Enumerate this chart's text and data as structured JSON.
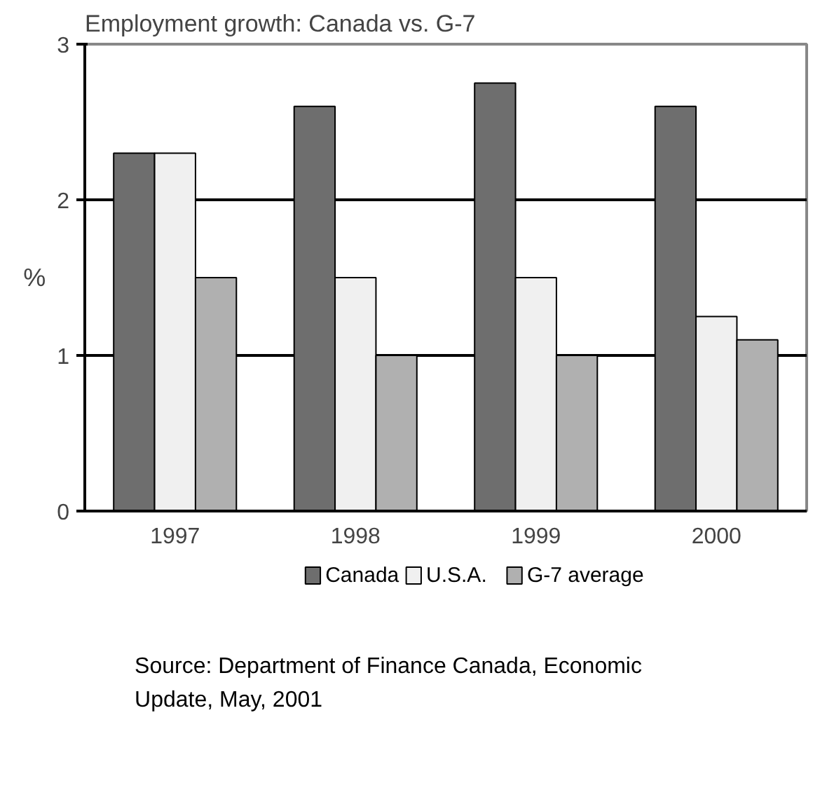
{
  "chart_data": {
    "type": "bar",
    "title": "Employment growth: Canada vs. G-7",
    "ylabel": "%",
    "categories": [
      "1997",
      "1998",
      "1999",
      "2000"
    ],
    "series": [
      {
        "name": "Canada",
        "color": "#6e6e6e",
        "values": [
          2.3,
          2.6,
          2.75,
          2.6
        ]
      },
      {
        "name": "U.S.A.",
        "color": "#f0f0f0",
        "values": [
          2.3,
          1.5,
          1.5,
          1.25
        ]
      },
      {
        "name": "G-7 average",
        "color": "#b0b0b0",
        "values": [
          1.5,
          1.0,
          1.0,
          1.1
        ]
      }
    ],
    "ylim": [
      0,
      3
    ],
    "yticks": [
      0,
      1,
      2,
      3
    ],
    "grid": "y",
    "legend": "bottom",
    "annotations": [
      "Source: Department of Finance Canada, Economic Update, May, 2001"
    ]
  }
}
